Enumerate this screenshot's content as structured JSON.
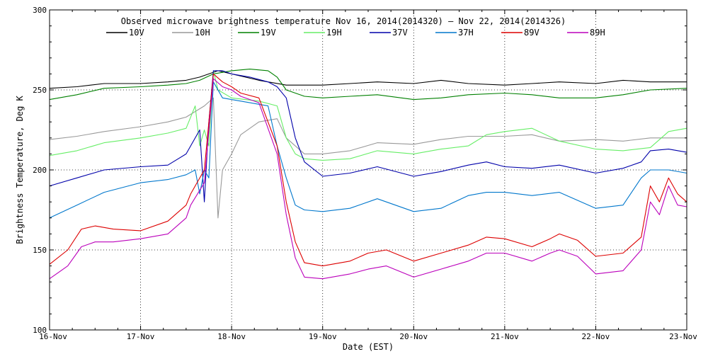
{
  "chart_data": {
    "type": "line",
    "title": "Observed microwave brightness temperature Nov 16, 2014(2014320) – Nov 22, 2014(2014326)",
    "xlabel": "Date (EST)",
    "ylabel": "Brightness Temperature, Deg K",
    "ylim": [
      100,
      300
    ],
    "xlim": [
      0,
      7
    ],
    "yticks": [
      100,
      150,
      200,
      250,
      300
    ],
    "xticks": [
      0,
      1,
      2,
      3,
      4,
      5,
      6,
      7
    ],
    "xtick_labels": [
      "16-Nov",
      "17-Nov",
      "18-Nov",
      "19-Nov",
      "20-Nov",
      "21-Nov",
      "22-Nov",
      "23-Nov"
    ],
    "grid": true,
    "legend_position": "top",
    "x_unit": "days since 16-Nov 00:00 EST",
    "series": [
      {
        "name": "10V",
        "color": "#000000",
        "x": [
          0,
          0.3,
          0.6,
          1,
          1.3,
          1.5,
          1.65,
          1.75,
          1.85,
          2,
          2.3,
          2.6,
          3,
          3.3,
          3.6,
          4,
          4.3,
          4.6,
          5,
          5.3,
          5.6,
          6,
          6.3,
          6.6,
          7
        ],
        "y": [
          251,
          252,
          254,
          254,
          255,
          256,
          258,
          260,
          262,
          260,
          256,
          253,
          253,
          254,
          255,
          254,
          256,
          254,
          253,
          254,
          255,
          254,
          256,
          255,
          255
        ]
      },
      {
        "name": "10H",
        "color": "#999999",
        "x": [
          0,
          0.3,
          0.6,
          1,
          1.3,
          1.5,
          1.7,
          1.8,
          1.85,
          1.9,
          2,
          2.1,
          2.3,
          2.5,
          2.6,
          2.8,
          3,
          3.3,
          3.6,
          4,
          4.3,
          4.6,
          5,
          5.3,
          5.6,
          6,
          6.3,
          6.6,
          7
        ],
        "y": [
          219,
          221,
          224,
          227,
          230,
          233,
          240,
          245,
          170,
          200,
          210,
          222,
          230,
          232,
          220,
          210,
          210,
          212,
          217,
          216,
          219,
          221,
          221,
          222,
          218,
          219,
          218,
          220,
          220
        ]
      },
      {
        "name": "19V",
        "color": "#008000",
        "x": [
          0,
          0.3,
          0.6,
          1,
          1.3,
          1.5,
          1.65,
          1.8,
          2,
          2.2,
          2.4,
          2.5,
          2.6,
          2.8,
          3,
          3.3,
          3.6,
          4,
          4.3,
          4.6,
          5,
          5.3,
          5.6,
          6,
          6.3,
          6.6,
          7
        ],
        "y": [
          244,
          247,
          251,
          252,
          253,
          254,
          256,
          260,
          262,
          263,
          262,
          258,
          250,
          246,
          245,
          246,
          247,
          244,
          245,
          247,
          248,
          247,
          245,
          245,
          247,
          250,
          251
        ]
      },
      {
        "name": "19H",
        "color": "#66ee66",
        "x": [
          0,
          0.3,
          0.6,
          1,
          1.3,
          1.5,
          1.6,
          1.65,
          1.7,
          1.75,
          1.8,
          1.85,
          2,
          2.3,
          2.5,
          2.6,
          2.7,
          2.8,
          3,
          3.3,
          3.6,
          4,
          4.3,
          4.6,
          4.8,
          5,
          5.3,
          5.6,
          6,
          6.3,
          6.6,
          6.8,
          7
        ],
        "y": [
          209,
          212,
          217,
          220,
          223,
          226,
          240,
          215,
          225,
          215,
          262,
          250,
          245,
          243,
          240,
          220,
          210,
          207,
          206,
          207,
          212,
          210,
          213,
          215,
          222,
          224,
          226,
          218,
          213,
          212,
          214,
          224,
          226
        ]
      },
      {
        "name": "37V",
        "color": "#0000aa",
        "x": [
          0,
          0.3,
          0.6,
          1,
          1.3,
          1.5,
          1.65,
          1.7,
          1.75,
          1.8,
          1.9,
          2,
          2.2,
          2.4,
          2.5,
          2.6,
          2.7,
          2.8,
          3,
          3.3,
          3.6,
          4,
          4.3,
          4.6,
          4.8,
          5,
          5.3,
          5.6,
          6,
          6.3,
          6.5,
          6.6,
          6.8,
          7
        ],
        "y": [
          190,
          195,
          200,
          202,
          203,
          210,
          225,
          180,
          230,
          262,
          262,
          260,
          258,
          255,
          252,
          245,
          220,
          205,
          196,
          198,
          202,
          196,
          199,
          203,
          205,
          202,
          201,
          203,
          198,
          201,
          205,
          212,
          213,
          211
        ]
      },
      {
        "name": "37H",
        "color": "#0077cc",
        "x": [
          0,
          0.3,
          0.6,
          1,
          1.3,
          1.5,
          1.6,
          1.65,
          1.7,
          1.75,
          1.8,
          1.9,
          2,
          2.2,
          2.4,
          2.5,
          2.6,
          2.7,
          2.8,
          3,
          3.3,
          3.6,
          4,
          4.3,
          4.6,
          4.8,
          5,
          5.3,
          5.6,
          6,
          6.3,
          6.5,
          6.6,
          6.8,
          7
        ],
        "y": [
          170,
          178,
          186,
          192,
          194,
          197,
          200,
          185,
          200,
          195,
          255,
          245,
          244,
          242,
          240,
          215,
          195,
          178,
          175,
          174,
          176,
          182,
          174,
          176,
          184,
          186,
          186,
          184,
          186,
          176,
          178,
          195,
          200,
          200,
          198
        ]
      },
      {
        "name": "89V",
        "color": "#dd0000",
        "x": [
          0,
          0.2,
          0.35,
          0.5,
          0.7,
          1,
          1.3,
          1.5,
          1.55,
          1.7,
          1.8,
          1.9,
          2,
          2.1,
          2.3,
          2.5,
          2.6,
          2.7,
          2.8,
          3,
          3.3,
          3.5,
          3.7,
          4,
          4.3,
          4.6,
          4.8,
          5,
          5.3,
          5.5,
          5.6,
          5.8,
          6,
          6.3,
          6.5,
          6.6,
          6.7,
          6.8,
          6.9,
          7
        ],
        "y": [
          141,
          150,
          163,
          165,
          163,
          162,
          168,
          178,
          185,
          200,
          260,
          255,
          252,
          248,
          245,
          215,
          180,
          155,
          142,
          140,
          143,
          148,
          150,
          143,
          148,
          153,
          158,
          157,
          152,
          157,
          160,
          156,
          146,
          148,
          158,
          190,
          180,
          195,
          185,
          180
        ]
      },
      {
        "name": "89H",
        "color": "#bb00bb",
        "x": [
          0,
          0.2,
          0.35,
          0.5,
          0.7,
          1,
          1.3,
          1.5,
          1.55,
          1.7,
          1.8,
          1.9,
          2,
          2.1,
          2.3,
          2.5,
          2.6,
          2.7,
          2.8,
          3,
          3.3,
          3.5,
          3.7,
          4,
          4.3,
          4.6,
          4.8,
          5,
          5.3,
          5.5,
          5.6,
          5.8,
          6,
          6.3,
          6.5,
          6.6,
          6.7,
          6.8,
          6.9,
          7
        ],
        "y": [
          132,
          140,
          152,
          155,
          155,
          157,
          160,
          170,
          178,
          192,
          257,
          252,
          250,
          246,
          242,
          210,
          172,
          145,
          133,
          132,
          135,
          138,
          140,
          133,
          138,
          143,
          148,
          148,
          143,
          148,
          150,
          146,
          135,
          137,
          150,
          180,
          172,
          190,
          178,
          177
        ]
      }
    ]
  }
}
